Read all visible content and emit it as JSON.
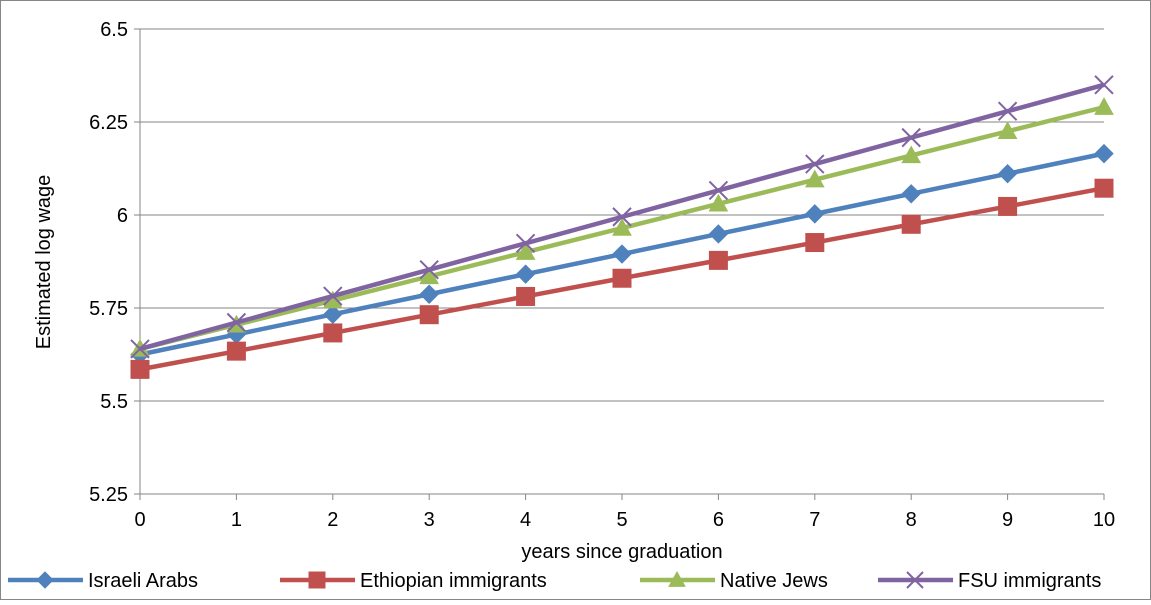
{
  "chart_data": {
    "type": "line",
    "title": "",
    "xlabel": "years since graduation",
    "ylabel": "Estimated log wage",
    "x": [
      0,
      1,
      2,
      3,
      4,
      5,
      6,
      7,
      8,
      9,
      10
    ],
    "xlim": [
      0,
      10
    ],
    "ylim": [
      5.25,
      6.5
    ],
    "yticks": [
      "5.25",
      "5.5",
      "5.75",
      "6",
      "6.25",
      "6.5"
    ],
    "xticks": [
      "0",
      "1",
      "2",
      "3",
      "4",
      "5",
      "6",
      "7",
      "8",
      "9",
      "10"
    ],
    "grid": "horizontal",
    "legend_position": "bottom",
    "series": [
      {
        "name": "Israeli Arabs",
        "color": "#4f81bd",
        "marker": "diamond",
        "values": [
          5.625,
          5.679,
          5.733,
          5.787,
          5.841,
          5.895,
          5.949,
          6.003,
          6.057,
          6.111,
          6.165
        ]
      },
      {
        "name": "Ethiopian immigrants",
        "color": "#c0504d",
        "marker": "square",
        "values": [
          5.585,
          5.634,
          5.683,
          5.732,
          5.781,
          5.83,
          5.878,
          5.926,
          5.975,
          6.023,
          6.072
        ]
      },
      {
        "name": "Native Jews",
        "color": "#9bbb59",
        "marker": "triangle",
        "values": [
          5.64,
          5.705,
          5.77,
          5.835,
          5.9,
          5.965,
          6.03,
          6.095,
          6.16,
          6.225,
          6.29
        ]
      },
      {
        "name": "FSU immigrants",
        "color": "#8064a2",
        "marker": "x",
        "values": [
          5.64,
          5.711,
          5.782,
          5.853,
          5.924,
          5.995,
          6.066,
          6.137,
          6.208,
          6.279,
          6.35
        ]
      }
    ]
  }
}
